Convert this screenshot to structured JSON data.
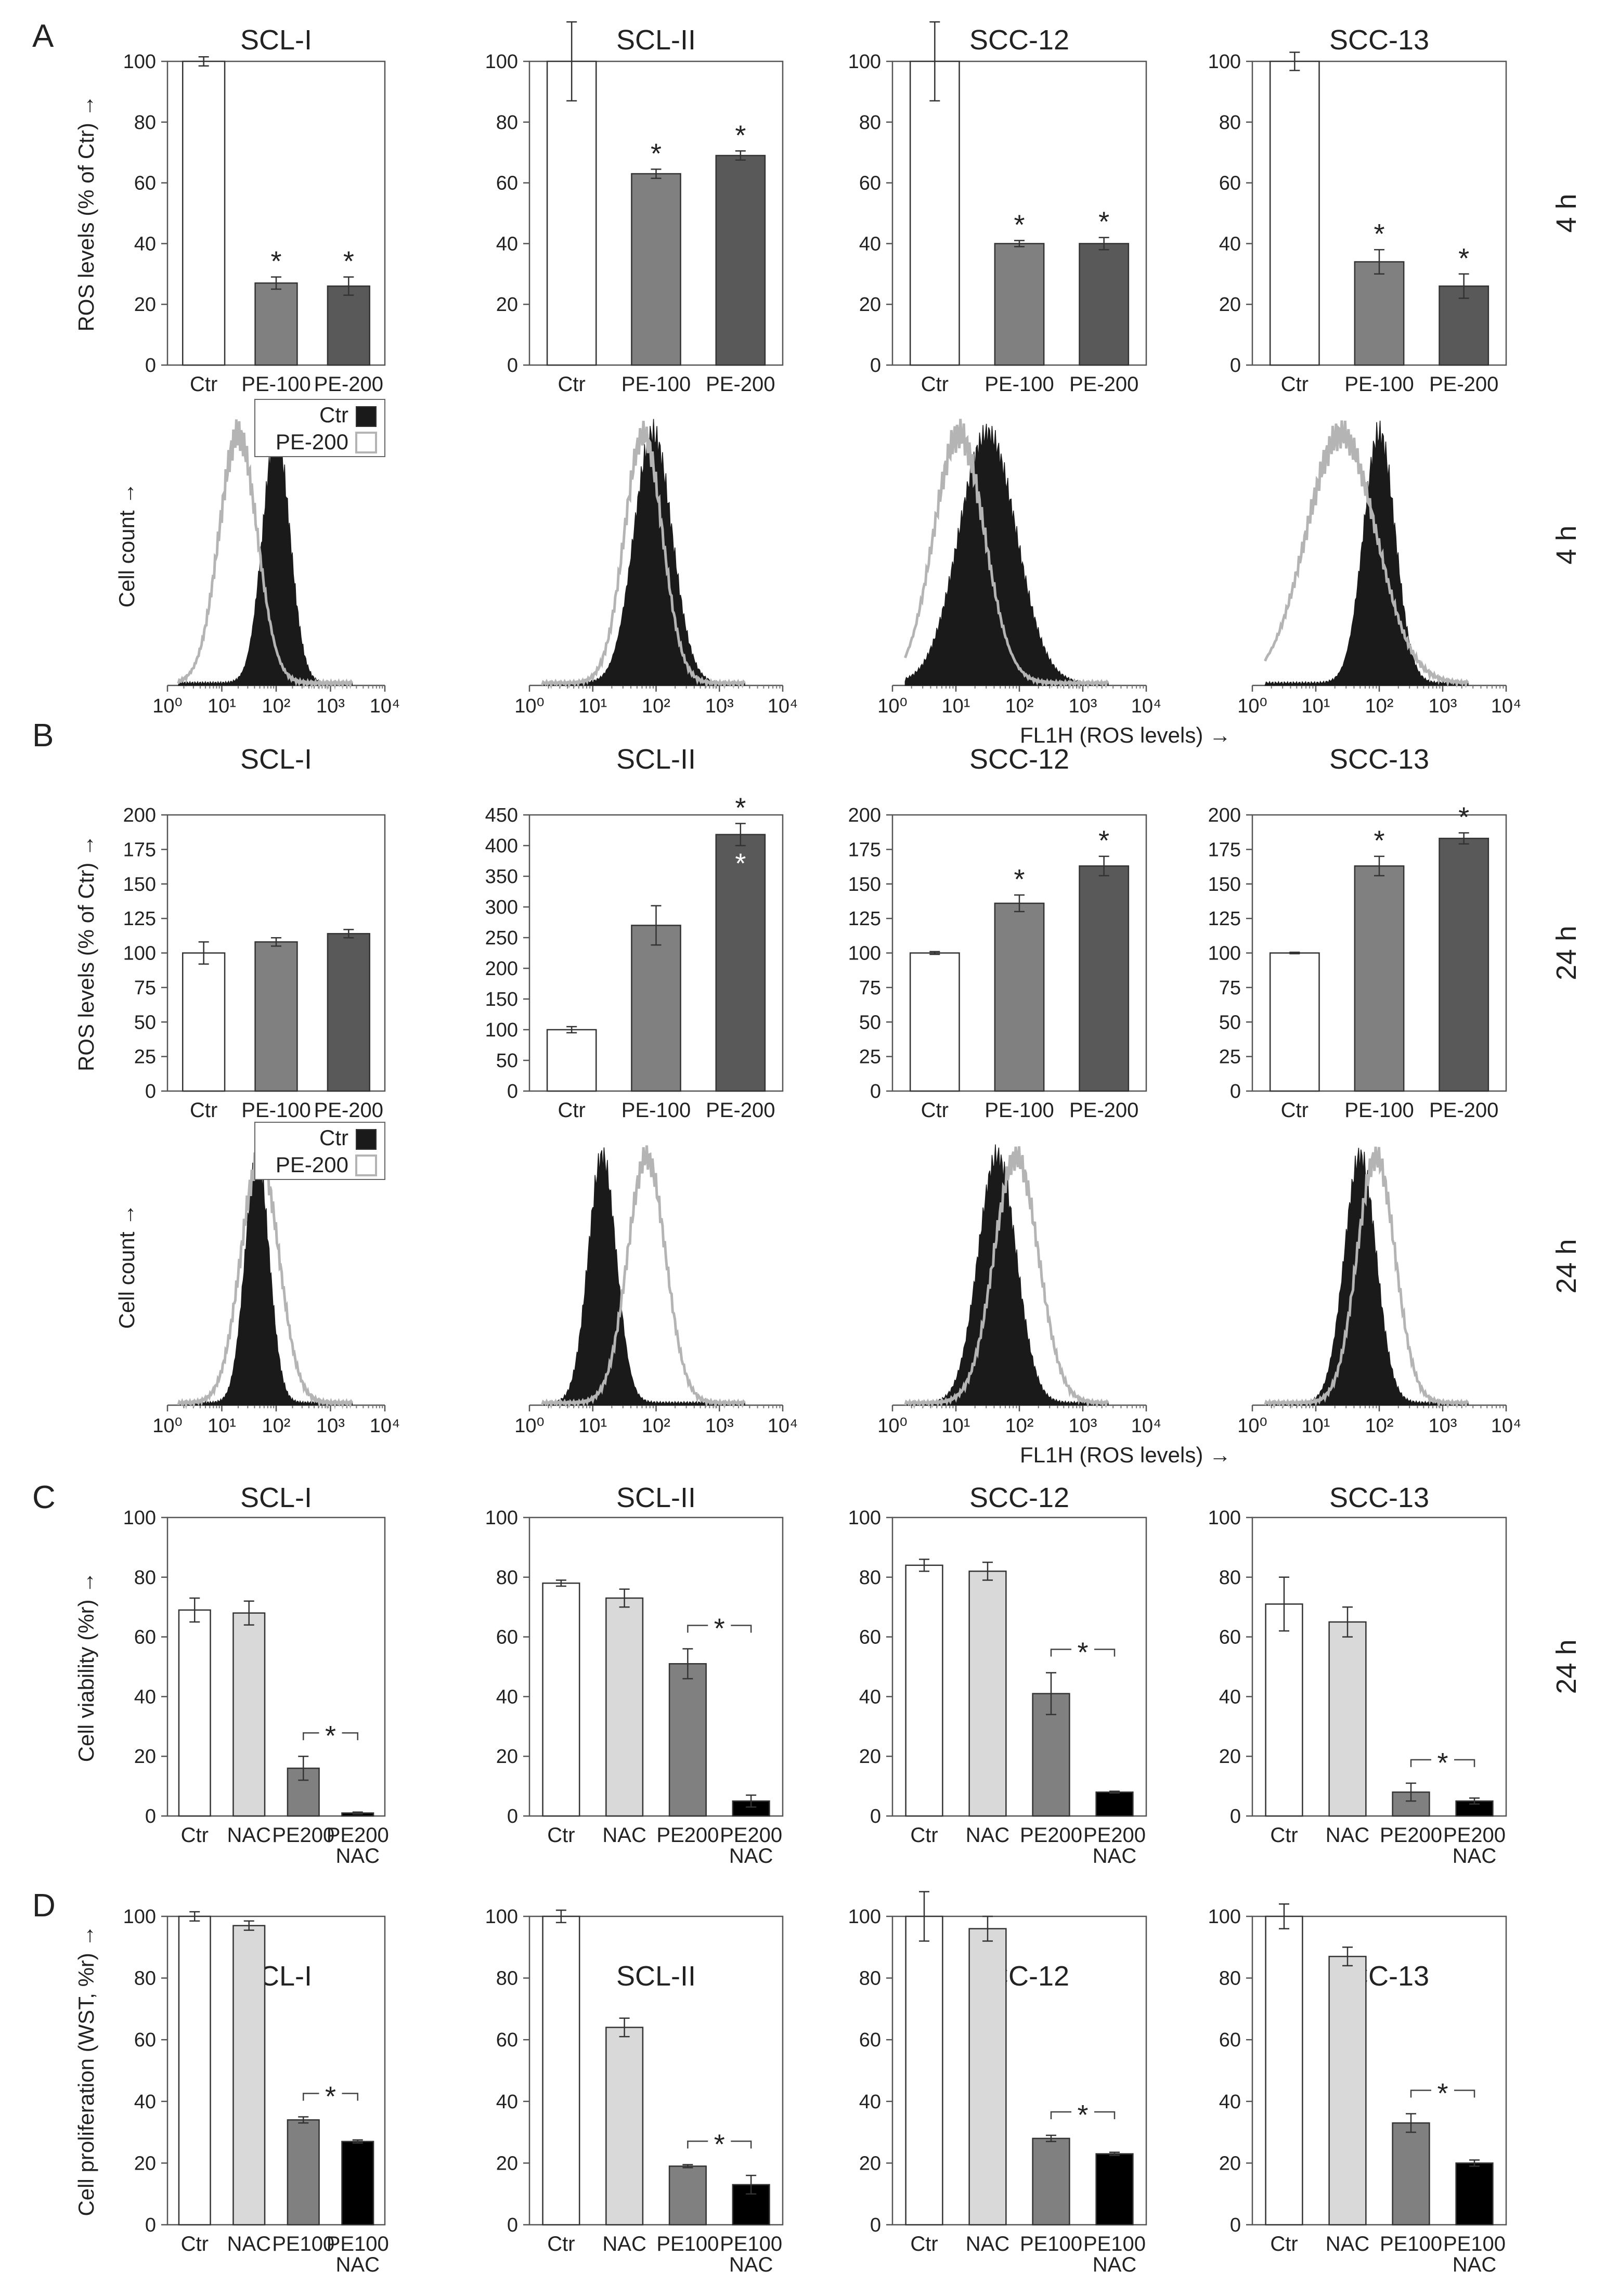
{
  "figure": {
    "panel_letters": [
      "A",
      "B",
      "C",
      "D"
    ],
    "cell_lines": [
      "SCL-I",
      "SCL-II",
      "SCC-12",
      "SCC-13"
    ],
    "time_labels": {
      "a": "4 h",
      "b": "24 h",
      "c": "24 h"
    },
    "ylabels": {
      "ros": "ROS levels (% of Ctr) →",
      "cell_count": "Cell count →",
      "viability": "Cell viability (%r) →",
      "proliferation": "Cell proliferation (WST, %r) →"
    },
    "histogram_xlabel": "FL1H (ROS levels) →",
    "histogram_legend": [
      "Ctr",
      "PE-200"
    ],
    "colors": {
      "ctr": "#ffffff",
      "nac": "#d9d9d9",
      "pe100": "#808080",
      "pe200_ros": "#595959",
      "pe_nac": "#000000",
      "hist_ctr": "#1a1a1a",
      "hist_pe": "#b4b4b4"
    }
  },
  "chart_data": [
    {
      "id": "A1",
      "type": "bar",
      "title": "SCL-I",
      "ylabel": "ROS levels (% of Ctr) →",
      "ylim": [
        0,
        100
      ],
      "yticks": [
        0,
        20,
        40,
        60,
        80,
        100
      ],
      "categories": [
        [
          "Ctr"
        ],
        [
          "PE-100"
        ],
        [
          "PE-200"
        ]
      ],
      "values": [
        100,
        27,
        26
      ],
      "errors": [
        1.5,
        2,
        3
      ],
      "significant": [
        false,
        true,
        true
      ],
      "side_label": "4 h"
    },
    {
      "id": "A2",
      "type": "bar",
      "title": "SCL-II",
      "ylim": [
        0,
        100
      ],
      "yticks": [
        0,
        20,
        40,
        60,
        80,
        100
      ],
      "categories": [
        [
          "Ctr"
        ],
        [
          "PE-100"
        ],
        [
          "PE-200"
        ]
      ],
      "values": [
        100,
        63,
        69
      ],
      "errors": [
        13,
        1.5,
        1.5
      ],
      "significant": [
        false,
        true,
        true
      ]
    },
    {
      "id": "A3",
      "type": "bar",
      "title": "SCC-12",
      "ylim": [
        0,
        100
      ],
      "yticks": [
        0,
        20,
        40,
        60,
        80,
        100
      ],
      "categories": [
        [
          "Ctr"
        ],
        [
          "PE-100"
        ],
        [
          "PE-200"
        ]
      ],
      "values": [
        100,
        40,
        40
      ],
      "errors": [
        13,
        1,
        2
      ],
      "significant": [
        false,
        true,
        true
      ]
    },
    {
      "id": "A4",
      "type": "bar",
      "title": "SCC-13",
      "ylim": [
        0,
        100
      ],
      "yticks": [
        0,
        20,
        40,
        60,
        80,
        100
      ],
      "categories": [
        [
          "Ctr"
        ],
        [
          "PE-100"
        ],
        [
          "PE-200"
        ]
      ],
      "values": [
        100,
        34,
        26
      ],
      "errors": [
        3,
        4,
        4
      ],
      "significant": [
        false,
        true,
        true
      ]
    },
    {
      "id": "HA1",
      "type": "histogram",
      "xscale": "log",
      "xlim": [
        1,
        10000
      ],
      "xticks": [
        "10⁰",
        "10¹",
        "10²",
        "10³",
        "10⁴"
      ],
      "series": [
        {
          "name": "Ctr",
          "peak_log10": 2.0,
          "width": 0.25,
          "filled": true
        },
        {
          "name": "PE-200",
          "peak_log10": 1.3,
          "width": 0.35,
          "filled": false
        }
      ],
      "ylabel": "Cell count →",
      "side_label": "4 h",
      "legend": true
    },
    {
      "id": "HA2",
      "type": "histogram",
      "xscale": "log",
      "xlim": [
        1,
        10000
      ],
      "xticks": [
        "10⁰",
        "10¹",
        "10²",
        "10³",
        "10⁴"
      ],
      "series": [
        {
          "name": "Ctr",
          "peak_log10": 1.95,
          "width": 0.3,
          "filled": true
        },
        {
          "name": "PE-200",
          "peak_log10": 1.8,
          "width": 0.3,
          "filled": false
        }
      ]
    },
    {
      "id": "HA3",
      "type": "histogram",
      "xscale": "log",
      "xlim": [
        1,
        10000
      ],
      "xticks": [
        "10⁰",
        "10¹",
        "10²",
        "10³",
        "10⁴"
      ],
      "series": [
        {
          "name": "Ctr",
          "peak_log10": 1.5,
          "width": 0.45,
          "filled": true
        },
        {
          "name": "PE-200",
          "peak_log10": 1.05,
          "width": 0.4,
          "filled": false
        }
      ],
      "xlabel": "FL1H (ROS levels) →"
    },
    {
      "id": "HA4",
      "type": "histogram",
      "xscale": "log",
      "xlim": [
        1,
        10000
      ],
      "xticks": [
        "10⁰",
        "10¹",
        "10²",
        "10³",
        "10⁴"
      ],
      "series": [
        {
          "name": "Ctr",
          "peak_log10": 2.0,
          "width": 0.25,
          "filled": true
        },
        {
          "name": "PE-200",
          "peak_log10": 1.4,
          "width": 0.55,
          "filled": false
        }
      ]
    },
    {
      "id": "B1",
      "type": "bar",
      "title": "SCL-I",
      "ylabel": "ROS levels (% of Ctr) →",
      "ylim": [
        0,
        200
      ],
      "yticks": [
        0,
        25,
        50,
        75,
        100,
        125,
        150,
        175,
        200
      ],
      "categories": [
        [
          "Ctr"
        ],
        [
          "PE-100"
        ],
        [
          "PE-200"
        ]
      ],
      "values": [
        100,
        108,
        114
      ],
      "errors": [
        8,
        3,
        3
      ],
      "significant": [
        false,
        false,
        false
      ],
      "side_label": "24 h"
    },
    {
      "id": "B2",
      "type": "bar",
      "title": "SCL-II",
      "ylim": [
        0,
        450
      ],
      "yticks": [
        0,
        50,
        100,
        150,
        200,
        250,
        300,
        350,
        400,
        450
      ],
      "categories": [
        [
          "Ctr"
        ],
        [
          "PE-100"
        ],
        [
          "PE-200"
        ]
      ],
      "values": [
        100,
        270,
        418
      ],
      "errors": [
        5,
        32,
        18
      ],
      "significant": [
        false,
        false,
        true
      ],
      "white_star": true
    },
    {
      "id": "B3",
      "type": "bar",
      "title": "SCC-12",
      "ylim": [
        0,
        200
      ],
      "yticks": [
        0,
        25,
        50,
        75,
        100,
        125,
        150,
        175,
        200
      ],
      "categories": [
        [
          "Ctr"
        ],
        [
          "PE-100"
        ],
        [
          "PE-200"
        ]
      ],
      "values": [
        100,
        136,
        163
      ],
      "errors": [
        1,
        6,
        7
      ],
      "significant": [
        false,
        true,
        true
      ]
    },
    {
      "id": "B4",
      "type": "bar",
      "title": "SCC-13",
      "ylim": [
        0,
        200
      ],
      "yticks": [
        0,
        25,
        50,
        75,
        100,
        125,
        150,
        175,
        200
      ],
      "categories": [
        [
          "Ctr"
        ],
        [
          "PE-100"
        ],
        [
          "PE-200"
        ]
      ],
      "values": [
        100,
        163,
        183
      ],
      "errors": [
        0.5,
        7,
        4
      ],
      "significant": [
        false,
        true,
        true
      ]
    },
    {
      "id": "HB1",
      "type": "histogram",
      "xscale": "log",
      "xlim": [
        1,
        10000
      ],
      "xticks": [
        "10⁰",
        "10¹",
        "10²",
        "10³",
        "10⁴"
      ],
      "series": [
        {
          "name": "Ctr",
          "peak_log10": 1.65,
          "width": 0.22,
          "filled": true
        },
        {
          "name": "PE-200",
          "peak_log10": 1.7,
          "width": 0.35,
          "filled": false
        }
      ],
      "ylabel": "Cell count →",
      "side_label": "24 h",
      "legend": true
    },
    {
      "id": "HB2",
      "type": "histogram",
      "xscale": "log",
      "xlim": [
        1,
        10000
      ],
      "xticks": [
        "10⁰",
        "10¹",
        "10²",
        "10³",
        "10⁴"
      ],
      "series": [
        {
          "name": "Ctr",
          "peak_log10": 1.15,
          "width": 0.22,
          "filled": true
        },
        {
          "name": "PE-200",
          "peak_log10": 1.85,
          "width": 0.3,
          "filled": false
        }
      ]
    },
    {
      "id": "HB3",
      "type": "histogram",
      "xscale": "log",
      "xlim": [
        1,
        10000
      ],
      "xticks": [
        "10⁰",
        "10¹",
        "10²",
        "10³",
        "10⁴"
      ],
      "series": [
        {
          "name": "Ctr",
          "peak_log10": 1.65,
          "width": 0.3,
          "filled": true
        },
        {
          "name": "PE-200",
          "peak_log10": 1.95,
          "width": 0.35,
          "filled": false
        }
      ],
      "xlabel": "FL1H (ROS levels) →"
    },
    {
      "id": "HB4",
      "type": "histogram",
      "xscale": "log",
      "xlim": [
        1,
        10000
      ],
      "xticks": [
        "10⁰",
        "10¹",
        "10²",
        "10³",
        "10⁴"
      ],
      "series": [
        {
          "name": "Ctr",
          "peak_log10": 1.7,
          "width": 0.25,
          "filled": true
        },
        {
          "name": "PE-200",
          "peak_log10": 1.95,
          "width": 0.3,
          "filled": false
        }
      ]
    },
    {
      "id": "C1",
      "type": "bar",
      "title": "SCL-I",
      "ylabel": "Cell viability (%r) →",
      "ylim": [
        0,
        100
      ],
      "yticks": [
        0,
        20,
        40,
        60,
        80,
        100
      ],
      "categories": [
        [
          "Ctr"
        ],
        [
          "NAC"
        ],
        [
          "PE200"
        ],
        [
          "PE200",
          "NAC"
        ]
      ],
      "values": [
        69,
        68,
        16,
        1
      ],
      "errors": [
        4,
        4,
        4,
        0.3
      ],
      "bracket": [
        2,
        3
      ],
      "side_label": "24 h"
    },
    {
      "id": "C2",
      "type": "bar",
      "title": "SCL-II",
      "ylim": [
        0,
        100
      ],
      "yticks": [
        0,
        20,
        40,
        60,
        80,
        100
      ],
      "categories": [
        [
          "Ctr"
        ],
        [
          "NAC"
        ],
        [
          "PE200"
        ],
        [
          "PE200",
          "NAC"
        ]
      ],
      "values": [
        78,
        73,
        51,
        5
      ],
      "errors": [
        1,
        3,
        5,
        2
      ],
      "bracket": [
        2,
        3
      ]
    },
    {
      "id": "C3",
      "type": "bar",
      "title": "SCC-12",
      "ylim": [
        0,
        100
      ],
      "yticks": [
        0,
        20,
        40,
        60,
        80,
        100
      ],
      "categories": [
        [
          "Ctr"
        ],
        [
          "NAC"
        ],
        [
          "PE200"
        ],
        [
          "PE200",
          "NAC"
        ]
      ],
      "values": [
        84,
        82,
        41,
        8
      ],
      "errors": [
        2,
        3,
        7,
        0.3
      ],
      "bracket": [
        2,
        3
      ]
    },
    {
      "id": "C4",
      "type": "bar",
      "title": "SCC-13",
      "ylim": [
        0,
        100
      ],
      "yticks": [
        0,
        20,
        40,
        60,
        80,
        100
      ],
      "categories": [
        [
          "Ctr"
        ],
        [
          "NAC"
        ],
        [
          "PE200"
        ],
        [
          "PE200",
          "NAC"
        ]
      ],
      "values": [
        71,
        65,
        8,
        5
      ],
      "errors": [
        9,
        5,
        3,
        1
      ],
      "bracket": [
        2,
        3
      ]
    },
    {
      "id": "D1",
      "type": "bar",
      "title": "SCL-I",
      "ylabel": "Cell proliferation (WST, %r) →",
      "ylim": [
        0,
        100
      ],
      "yticks": [
        0,
        20,
        40,
        60,
        80,
        100
      ],
      "categories": [
        [
          "Ctr"
        ],
        [
          "NAC"
        ],
        [
          "PE100"
        ],
        [
          "PE100",
          "NAC"
        ]
      ],
      "values": [
        100,
        97,
        34,
        27
      ],
      "errors": [
        1.5,
        1.5,
        1,
        0.5
      ],
      "bracket": [
        2,
        3
      ]
    },
    {
      "id": "D2",
      "type": "bar",
      "title": "SCL-II",
      "ylim": [
        0,
        100
      ],
      "yticks": [
        0,
        20,
        40,
        60,
        80,
        100
      ],
      "categories": [
        [
          "Ctr"
        ],
        [
          "NAC"
        ],
        [
          "PE100"
        ],
        [
          "PE100",
          "NAC"
        ]
      ],
      "values": [
        100,
        64,
        19,
        13
      ],
      "errors": [
        2,
        3,
        0.5,
        3
      ],
      "bracket": [
        2,
        3
      ]
    },
    {
      "id": "D3",
      "type": "bar",
      "title": "SCC-12",
      "ylim": [
        0,
        100
      ],
      "yticks": [
        0,
        20,
        40,
        60,
        80,
        100
      ],
      "categories": [
        [
          "Ctr"
        ],
        [
          "NAC"
        ],
        [
          "PE100"
        ],
        [
          "PE100",
          "NAC"
        ]
      ],
      "values": [
        100,
        96,
        28,
        23
      ],
      "errors": [
        8,
        4,
        1,
        0.5
      ],
      "bracket": [
        2,
        3
      ]
    },
    {
      "id": "D4",
      "type": "bar",
      "title": "SCC-13",
      "ylim": [
        0,
        100
      ],
      "yticks": [
        0,
        20,
        40,
        60,
        80,
        100
      ],
      "categories": [
        [
          "Ctr"
        ],
        [
          "NAC"
        ],
        [
          "PE100"
        ],
        [
          "PE100",
          "NAC"
        ]
      ],
      "values": [
        100,
        87,
        33,
        20
      ],
      "errors": [
        4,
        3,
        3,
        1
      ],
      "bracket": [
        2,
        3
      ]
    }
  ]
}
